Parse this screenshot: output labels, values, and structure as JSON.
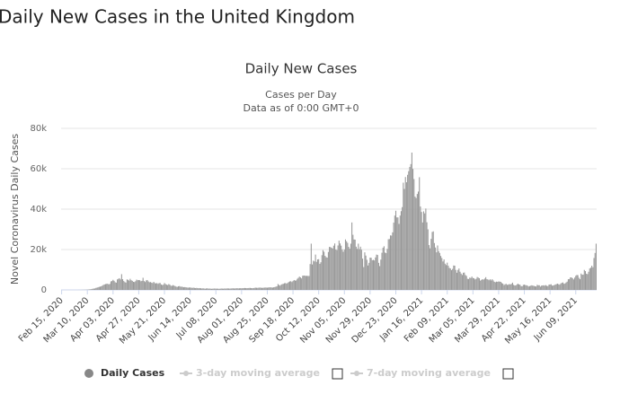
{
  "page_title": "Daily New Cases in the United Kingdom",
  "chart_data": {
    "type": "bar",
    "title": "Daily New Cases",
    "subtitle": [
      "Cases per Day",
      "Data as of 0:00 GMT+0"
    ],
    "y_label": "Novel Coronavirus Daily Cases",
    "ylim": [
      0,
      80000
    ],
    "yticks": [
      0,
      {
        "value": 20000,
        "label": "20k"
      },
      {
        "value": 40000,
        "label": "40k"
      },
      {
        "value": 60000,
        "label": "60k"
      },
      {
        "value": 80000,
        "label": "80k"
      }
    ],
    "grid": true,
    "categories": [
      "Feb 15, 2020",
      null,
      null,
      null,
      null,
      null,
      null,
      null,
      null,
      null,
      null,
      null,
      null,
      null,
      null,
      null,
      null,
      null,
      null,
      null,
      null,
      null,
      null,
      null,
      "Mar 10, 2020",
      null,
      null,
      null,
      null,
      null,
      null,
      null,
      null,
      null,
      null,
      null,
      null,
      null,
      null,
      null,
      null,
      null,
      null,
      null,
      null,
      null,
      null,
      null,
      "Apr 03, 2020",
      null,
      null,
      null,
      null,
      null,
      null,
      null,
      null,
      null,
      null,
      null,
      null,
      null,
      null,
      null,
      null,
      null,
      null,
      null,
      null,
      null,
      null,
      null,
      "Apr 27, 2020",
      null,
      null,
      null,
      null,
      null,
      null,
      null,
      null,
      null,
      null,
      null,
      null,
      null,
      null,
      null,
      null,
      null,
      null,
      null,
      null,
      null,
      null,
      null,
      "May 21, 2020",
      null,
      null,
      null,
      null,
      null,
      null,
      null,
      null,
      null,
      null,
      null,
      null,
      null,
      null,
      null,
      null,
      null,
      null,
      null,
      null,
      null,
      null,
      null,
      "Jun 14, 2020",
      null,
      null,
      null,
      null,
      null,
      null,
      null,
      null,
      null,
      null,
      null,
      null,
      null,
      null,
      null,
      null,
      null,
      null,
      null,
      null,
      null,
      null,
      null,
      "Jul 08, 2020",
      null,
      null,
      null,
      null,
      null,
      null,
      null,
      null,
      null,
      null,
      null,
      null,
      null,
      null,
      null,
      null,
      null,
      null,
      null,
      null,
      null,
      null,
      null,
      "Aug 01, 2020",
      null,
      null,
      null,
      null,
      null,
      null,
      null,
      null,
      null,
      null,
      null,
      null,
      null,
      null,
      null,
      null,
      null,
      null,
      null,
      null,
      null,
      null,
      null,
      "Aug 25, 2020",
      null,
      null,
      null,
      null,
      null,
      null,
      null,
      null,
      null,
      null,
      null,
      null,
      null,
      null,
      null,
      null,
      null,
      null,
      null,
      null,
      null,
      null,
      null,
      "Sep 18, 2020",
      null,
      null,
      null,
      null,
      null,
      null,
      null,
      null,
      null,
      null,
      null,
      null,
      null,
      null,
      null,
      null,
      null,
      null,
      null,
      null,
      null,
      null,
      null,
      "Oct 12, 2020",
      null,
      null,
      null,
      null,
      null,
      null,
      null,
      null,
      null,
      null,
      null,
      null,
      null,
      null,
      null,
      null,
      null,
      null,
      null,
      null,
      null,
      null,
      null,
      "Nov 05, 2020",
      null,
      null,
      null,
      null,
      null,
      null,
      null,
      null,
      null,
      null,
      null,
      null,
      null,
      null,
      null,
      null,
      null,
      null,
      null,
      null,
      null,
      null,
      null,
      "Nov 29, 2020",
      null,
      null,
      null,
      null,
      null,
      null,
      null,
      null,
      null,
      null,
      null,
      null,
      null,
      null,
      null,
      null,
      null,
      null,
      null,
      null,
      null,
      null,
      null,
      "Dec 23, 2020",
      null,
      null,
      null,
      null,
      null,
      null,
      null,
      null,
      null,
      null,
      null,
      null,
      null,
      null,
      null,
      null,
      null,
      null,
      null,
      null,
      null,
      null,
      null,
      "Jan 16, 2021",
      null,
      null,
      null,
      null,
      null,
      null,
      null,
      null,
      null,
      null,
      null,
      null,
      null,
      null,
      null,
      null,
      null,
      null,
      null,
      null,
      null,
      null,
      null,
      "Feb 09, 2021",
      null,
      null,
      null,
      null,
      null,
      null,
      null,
      null,
      null,
      null,
      null,
      null,
      null,
      null,
      null,
      null,
      null,
      null,
      null,
      null,
      null,
      null,
      null,
      "Mar 05, 2021",
      null,
      null,
      null,
      null,
      null,
      null,
      null,
      null,
      null,
      null,
      null,
      null,
      null,
      null,
      null,
      null,
      null,
      null,
      null,
      null,
      null,
      null,
      null,
      "Mar 29, 2021",
      null,
      null,
      null,
      null,
      null,
      null,
      null,
      null,
      null,
      null,
      null,
      null,
      null,
      null,
      null,
      null,
      null,
      null,
      null,
      null,
      null,
      null,
      null,
      "Apr 22, 2021",
      null,
      null,
      null,
      null,
      null,
      null,
      null,
      null,
      null,
      null,
      null,
      null,
      null,
      null,
      null,
      null,
      null,
      null,
      null,
      null,
      null,
      null,
      null,
      "May 16, 2021",
      null,
      null,
      null,
      null,
      null,
      null,
      null,
      null,
      null,
      null,
      null,
      null,
      null,
      null,
      null,
      null,
      null,
      null,
      null,
      null,
      null,
      null,
      null,
      "Jun 09, 2021",
      null,
      null,
      null,
      null,
      null,
      null,
      null,
      null,
      null,
      null,
      null,
      null,
      null,
      null,
      null,
      null,
      null,
      null,
      null
    ],
    "series": [
      {
        "name": "Daily Cases",
        "color": "#999999",
        "values": [
          0,
          0,
          0,
          0,
          0,
          0,
          0,
          0,
          0,
          0,
          0,
          0,
          0,
          0,
          0,
          5,
          10,
          15,
          30,
          40,
          50,
          60,
          80,
          100,
          150,
          200,
          250,
          330,
          400,
          600,
          650,
          700,
          1000,
          1100,
          1300,
          1500,
          1600,
          1800,
          2100,
          2500,
          2700,
          2900,
          3000,
          3100,
          2700,
          3000,
          4200,
          4400,
          5000,
          4500,
          3800,
          3600,
          5200,
          5500,
          5800,
          5200,
          7800,
          5300,
          4400,
          3900,
          3600,
          5200,
          5000,
          4600,
          5500,
          4800,
          4500,
          4000,
          3900,
          4300,
          5100,
          4800,
          4900,
          4800,
          4300,
          4500,
          6000,
          4400,
          3900,
          4700,
          4900,
          4200,
          3800,
          3900,
          3600,
          3400,
          4000,
          3400,
          3200,
          3400,
          3000,
          3400,
          3400,
          2700,
          2400,
          2600,
          3400,
          2900,
          2600,
          2400,
          2900,
          2600,
          2100,
          2000,
          2400,
          2100,
          1900,
          1600,
          1500,
          1800,
          1900,
          1600,
          1600,
          1500,
          1300,
          1400,
          1300,
          1200,
          1100,
          1200,
          1200,
          1100,
          1000,
          1100,
          1000,
          900,
          1000,
          900,
          800,
          900,
          800,
          700,
          800,
          700,
          600,
          700,
          800,
          600,
          700,
          600,
          550,
          600,
          650,
          700,
          600,
          650,
          600,
          550,
          600,
          700,
          650,
          600,
          700,
          650,
          700,
          750,
          700,
          650,
          700,
          750,
          800,
          700,
          750,
          800,
          850,
          750,
          800,
          850,
          800,
          850,
          900,
          950,
          900,
          850,
          900,
          950,
          1000,
          900,
          850,
          900,
          1000,
          1100,
          1050,
          1000,
          1100,
          1150,
          1100,
          1000,
          1050,
          1100,
          1200,
          1150,
          1100,
          1200,
          1250,
          1300,
          1200,
          1150,
          1300,
          1400,
          1600,
          1800,
          2900,
          2400,
          2100,
          2600,
          2900,
          3000,
          3300,
          3400,
          3100,
          3500,
          3900,
          4200,
          4300,
          3900,
          4400,
          4900,
          4600,
          4700,
          5500,
          6000,
          6600,
          6200,
          5700,
          7000,
          7100,
          7100,
          6900,
          7000,
          6900,
          6900,
          12800,
          22900,
          12600,
          14500,
          14100,
          17500,
          13900,
          15100,
          15200,
          12900,
          13700,
          17200,
          19700,
          18900,
          16900,
          16200,
          16000,
          18800,
          21300,
          21200,
          20900,
          20500,
          21900,
          23000,
          20000,
          19700,
          22000,
          24400,
          23000,
          21900,
          20000,
          18900,
          20000,
          25000,
          24100,
          23300,
          21300,
          20400,
          22900,
          33400,
          27300,
          25000,
          24900,
          21400,
          20300,
          22900,
          20200,
          21400,
          19900,
          15500,
          11300,
          18600,
          17000,
          14900,
          12100,
          13400,
          16000,
          15900,
          14700,
          14900,
          14600,
          16100,
          17500,
          17300,
          13400,
          11800,
          15000,
          18400,
          20900,
          21600,
          18500,
          18200,
          20300,
          25100,
          25200,
          27000,
          26900,
          28500,
          33300,
          36800,
          39200,
          35900,
          35900,
          32700,
          36800,
          39000,
          41000,
          53100,
          50000,
          55900,
          53300,
          57000,
          58800,
          60900,
          62300,
          68000,
          59900,
          54900,
          46200,
          45500,
          47500,
          48700,
          55800,
          41300,
          38600,
          33400,
          38900,
          37900,
          40300,
          33500,
          30000,
          22200,
          20600,
          25300,
          28700,
          29000,
          23200,
          21000,
          18600,
          22000,
          19200,
          18300,
          16800,
          15800,
          14100,
          15100,
          13000,
          12300,
          13500,
          12000,
          10900,
          10600,
          9800,
          10400,
          12100,
          12000,
          9900,
          8500,
          9900,
          10600,
          9000,
          8100,
          7400,
          8500,
          8600,
          7400,
          6900,
          5500,
          5400,
          6100,
          5900,
          6600,
          5900,
          5800,
          5200,
          5500,
          6400,
          6100,
          5800,
          4600,
          5000,
          5300,
          5100,
          5600,
          6300,
          5300,
          5200,
          4800,
          5300,
          4700,
          5300,
          4700,
          4000,
          3800,
          4100,
          4000,
          4200,
          4100,
          4000,
          3400,
          3100,
          2400,
          2800,
          3000,
          2500,
          2600,
          2900,
          2700,
          3000,
          3600,
          2500,
          2200,
          2200,
          2700,
          3100,
          2700,
          2600,
          1900,
          1800,
          2500,
          2600,
          2400,
          2300,
          2100,
          1700,
          1900,
          2100,
          2300,
          2100,
          2000,
          1800,
          1700,
          2500,
          2300,
          2300,
          1600,
          2100,
          2200,
          2300,
          2100,
          2400,
          2000,
          1900,
          2600,
          2700,
          2800,
          2100,
          2200,
          2400,
          2700,
          2900,
          3100,
          2800,
          2600,
          3200,
          3500,
          3700,
          3000,
          3200,
          3700,
          4100,
          5300,
          5400,
          6200,
          6200,
          5800,
          5200,
          6100,
          7000,
          7400,
          7300,
          6000,
          5300,
          8100,
          7500,
          7600,
          9900,
          9300,
          8000,
          7800,
          9000,
          10600,
          11000,
          12000,
          11200,
          15800,
          18300,
          22900
        ]
      }
    ],
    "legend_marker_color": "#888888",
    "inactive_legend": [
      "3-day moving average",
      "7-day moving average"
    ],
    "inactive_color": "#cccccc"
  }
}
